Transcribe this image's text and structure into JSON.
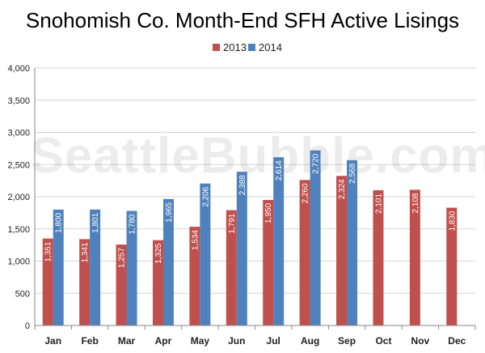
{
  "chart_data": {
    "type": "bar",
    "title": "Snohomish Co. Month-End SFH Active Lisings",
    "watermark": "SeattleBubble.com",
    "categories": [
      "Jan",
      "Feb",
      "Mar",
      "Apr",
      "May",
      "Jun",
      "Jul",
      "Aug",
      "Sep",
      "Oct",
      "Nov",
      "Dec"
    ],
    "series": [
      {
        "name": "2013",
        "color": "#c0504d",
        "values": [
          1351,
          1341,
          1257,
          1325,
          1534,
          1791,
          1950,
          2260,
          2324,
          2101,
          2108,
          1830
        ],
        "labels": [
          "1,351",
          "1,341",
          "1,257",
          "1,325",
          "1,534",
          "1,791",
          "1,950",
          "2,260",
          "2,324",
          "2,101",
          "2,108",
          "1,830"
        ]
      },
      {
        "name": "2014",
        "color": "#4f81bd",
        "values": [
          1800,
          1801,
          1780,
          1965,
          2206,
          2388,
          2614,
          2720,
          2568,
          null,
          null,
          null
        ],
        "labels": [
          "1,800",
          "1,801",
          "1,780",
          "1,965",
          "2,206",
          "2,388",
          "2,614",
          "2,720",
          "2,568",
          "",
          "",
          ""
        ]
      }
    ],
    "ylim": [
      0,
      4000
    ],
    "yticks": [
      0,
      500,
      1000,
      1500,
      2000,
      2500,
      3000,
      3500,
      4000
    ],
    "ytick_labels": [
      "0",
      "500",
      "1,000",
      "1,500",
      "2,000",
      "2,500",
      "3,000",
      "3,500",
      "4,000"
    ],
    "grid": true,
    "legend": "top-center"
  }
}
